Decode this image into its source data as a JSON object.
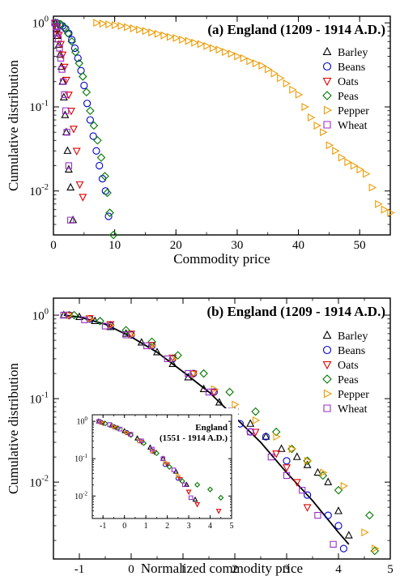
{
  "colors": {
    "Barley": "#000000",
    "Beans": "#0000cc",
    "Oats": "#dd0000",
    "Peas": "#007700",
    "Pepper": "#ee9a00",
    "Wheat": "#9a2ec8"
  },
  "markers": {
    "Barley": "triangle-up",
    "Beans": "circle",
    "Oats": "triangle-down",
    "Peas": "diamond",
    "Pepper": "triangle-right",
    "Wheat": "square"
  },
  "chart_data": [
    {
      "type": "scatter",
      "title": "(a) England (1209 - 1914 A.D.)",
      "xlabel": "Commodity price",
      "ylabel": "Cumulative distribution",
      "xlim": [
        0,
        55
      ],
      "ylim": [
        0.003,
        1.2
      ],
      "yscale": "log",
      "x_ticks": [
        0,
        10,
        20,
        30,
        40,
        50
      ],
      "y_ticks": [
        {
          "value": 1,
          "label": "10",
          "exp": "0"
        },
        {
          "value": 0.1,
          "label": "10",
          "exp": "-1"
        },
        {
          "value": 0.01,
          "label": "10",
          "exp": "-2"
        }
      ],
      "legend_position": "right",
      "series": [
        {
          "name": "Barley",
          "x": [
            0.3,
            0.5,
            0.7,
            0.9,
            1.1,
            1.3,
            1.5,
            1.7,
            1.9,
            2.1,
            2.3,
            2.5,
            2.8,
            3.2
          ],
          "y": [
            1.0,
            0.85,
            0.7,
            0.55,
            0.42,
            0.3,
            0.2,
            0.13,
            0.08,
            0.05,
            0.03,
            0.018,
            0.011,
            0.0045
          ]
        },
        {
          "name": "Beans",
          "x": [
            0.5,
            1.0,
            1.5,
            2.0,
            2.5,
            3.0,
            3.5,
            4.0,
            4.5,
            5.0,
            5.5,
            6.0,
            6.5,
            7.0,
            7.5,
            8.0,
            8.5,
            9.0
          ],
          "y": [
            1.0,
            0.97,
            0.92,
            0.85,
            0.75,
            0.63,
            0.5,
            0.38,
            0.27,
            0.18,
            0.11,
            0.07,
            0.045,
            0.03,
            0.02,
            0.014,
            0.01,
            0.005
          ]
        },
        {
          "name": "Oats",
          "x": [
            0.3,
            0.6,
            0.9,
            1.2,
            1.5,
            1.8,
            2.1,
            2.5,
            2.9,
            3.3,
            3.8,
            4.3,
            4.8
          ],
          "y": [
            1.0,
            0.88,
            0.72,
            0.56,
            0.42,
            0.3,
            0.21,
            0.14,
            0.09,
            0.055,
            0.03,
            0.012,
            0.0085
          ]
        },
        {
          "name": "Peas",
          "x": [
            0.6,
            1.2,
            1.8,
            2.4,
            3.0,
            3.6,
            4.2,
            4.8,
            5.4,
            6.0,
            6.6,
            7.2,
            7.8,
            8.4,
            8.8,
            9.2,
            9.8
          ],
          "y": [
            1.0,
            0.96,
            0.88,
            0.75,
            0.6,
            0.45,
            0.33,
            0.23,
            0.15,
            0.09,
            0.06,
            0.04,
            0.025,
            0.015,
            0.0095,
            0.0055,
            0.003
          ]
        },
        {
          "name": "Pepper",
          "x": [
            7,
            8,
            9,
            10,
            11,
            12,
            13,
            14,
            15,
            16,
            17,
            18,
            19,
            20,
            21,
            22,
            23,
            24,
            25,
            26,
            27,
            28,
            29,
            30,
            31,
            32,
            33,
            34,
            35,
            36,
            37,
            38,
            39,
            40,
            41,
            42,
            43,
            44,
            45,
            46,
            47,
            48,
            49,
            50,
            51,
            52,
            53,
            54,
            55
          ],
          "y": [
            1.0,
            0.98,
            0.96,
            0.94,
            0.92,
            0.89,
            0.86,
            0.83,
            0.8,
            0.77,
            0.74,
            0.71,
            0.68,
            0.66,
            0.63,
            0.61,
            0.58,
            0.56,
            0.53,
            0.5,
            0.48,
            0.45,
            0.43,
            0.4,
            0.38,
            0.35,
            0.33,
            0.31,
            0.28,
            0.25,
            0.22,
            0.19,
            0.16,
            0.14,
            0.1,
            0.075,
            0.06,
            0.05,
            0.035,
            0.03,
            0.025,
            0.022,
            0.02,
            0.018,
            0.016,
            0.011,
            0.007,
            0.006,
            0.0055
          ]
        },
        {
          "name": "Wheat",
          "x": [
            0.2,
            0.4,
            0.6,
            0.8,
            1.0,
            1.2,
            1.4,
            1.6,
            1.8,
            2.0,
            2.2,
            2.5,
            2.8
          ],
          "y": [
            1.0,
            0.9,
            0.78,
            0.64,
            0.5,
            0.38,
            0.28,
            0.2,
            0.14,
            0.09,
            0.05,
            0.02,
            0.0045
          ]
        }
      ]
    },
    {
      "type": "scatter",
      "title": "(b) England (1209 - 1914 A.D.)",
      "xlabel": "Normalized commodity price",
      "ylabel": "Cumulative distribution",
      "xlim": [
        -1.5,
        5
      ],
      "ylim": [
        0.0012,
        1.6
      ],
      "yscale": "log",
      "x_ticks": [
        -1,
        0,
        1,
        2,
        3,
        4,
        5
      ],
      "y_ticks": [
        {
          "value": 1,
          "label": "10",
          "exp": "0"
        },
        {
          "value": 0.1,
          "label": "10",
          "exp": "-1"
        },
        {
          "value": 0.01,
          "label": "10",
          "exp": "-2"
        }
      ],
      "legend_position": "right",
      "fit_curve": {
        "x": [
          -1.3,
          -1.0,
          -0.5,
          0.0,
          0.5,
          1.0,
          1.5,
          2.0,
          2.5,
          3.0,
          3.5,
          4.0,
          4.2
        ],
        "y": [
          1.0,
          0.95,
          0.78,
          0.55,
          0.36,
          0.21,
          0.12,
          0.06,
          0.03,
          0.013,
          0.006,
          0.0025,
          0.0018
        ]
      },
      "series": [
        {
          "name": "Barley",
          "x": [
            -1.3,
            -1.0,
            -0.7,
            -0.4,
            -0.1,
            0.2,
            0.5,
            0.8,
            1.1,
            1.4,
            1.7,
            2.0,
            2.3,
            2.6,
            2.9,
            3.2,
            3.4,
            3.6,
            3.8,
            4.0,
            4.2
          ],
          "y": [
            1.0,
            0.95,
            0.85,
            0.72,
            0.6,
            0.47,
            0.36,
            0.26,
            0.18,
            0.13,
            0.09,
            0.07,
            0.05,
            0.035,
            0.025,
            0.02,
            0.016,
            0.013,
            0.01,
            0.0045,
            0.0023
          ]
        },
        {
          "name": "Beans",
          "x": [
            -1.2,
            -0.8,
            -0.4,
            0.0,
            0.4,
            0.8,
            1.2,
            1.6,
            1.9,
            2.1,
            2.3,
            2.6,
            3.0,
            3.4,
            3.8,
            4.0,
            4.1
          ],
          "y": [
            1.0,
            0.9,
            0.75,
            0.58,
            0.43,
            0.3,
            0.2,
            0.12,
            0.07,
            0.05,
            0.04,
            0.035,
            0.018,
            0.007,
            0.004,
            0.003,
            0.0016
          ]
        },
        {
          "name": "Oats",
          "x": [
            -1.2,
            -0.8,
            -0.4,
            0.0,
            0.4,
            0.8,
            1.2,
            1.6,
            2.0,
            2.4,
            2.8,
            3.0,
            3.2,
            3.4
          ],
          "y": [
            1.0,
            0.92,
            0.78,
            0.6,
            0.44,
            0.31,
            0.2,
            0.12,
            0.07,
            0.04,
            0.022,
            0.015,
            0.01,
            0.005
          ]
        },
        {
          "name": "Peas",
          "x": [
            -1.1,
            -0.6,
            -0.1,
            0.4,
            0.9,
            1.4,
            1.9,
            2.4,
            2.8,
            3.1,
            3.4,
            3.7,
            4.0,
            4.6,
            4.7
          ],
          "y": [
            1.0,
            0.85,
            0.66,
            0.48,
            0.33,
            0.2,
            0.12,
            0.07,
            0.04,
            0.025,
            0.018,
            0.012,
            0.008,
            0.004,
            0.0015
          ]
        },
        {
          "name": "Pepper",
          "x": [
            -1.2,
            -0.8,
            -0.4,
            0.0,
            0.4,
            0.8,
            1.2,
            1.6,
            2.0,
            2.4,
            2.8,
            3.1,
            3.4,
            3.7,
            4.1,
            4.5,
            4.7
          ],
          "y": [
            1.0,
            0.9,
            0.75,
            0.58,
            0.43,
            0.3,
            0.2,
            0.13,
            0.085,
            0.055,
            0.035,
            0.025,
            0.018,
            0.013,
            0.009,
            0.0025,
            0.0016
          ]
        },
        {
          "name": "Wheat",
          "x": [
            -1.3,
            -0.9,
            -0.5,
            -0.1,
            0.3,
            0.7,
            1.1,
            1.5,
            1.9,
            2.3,
            2.7,
            3.0,
            3.3,
            3.6,
            3.9
          ],
          "y": [
            1.0,
            0.88,
            0.74,
            0.58,
            0.43,
            0.3,
            0.2,
            0.12,
            0.07,
            0.04,
            0.02,
            0.012,
            0.008,
            0.004,
            0.0018
          ]
        }
      ]
    },
    {
      "type": "scatter",
      "title": "England",
      "subtitle": "(1551 - 1914 A.D.)",
      "xlim": [
        -1.5,
        5
      ],
      "ylim": [
        0.0025,
        1.5
      ],
      "yscale": "log",
      "x_ticks": [
        -1,
        0,
        1,
        2,
        3,
        4,
        5
      ],
      "y_ticks": [
        {
          "value": 1,
          "label": "10",
          "exp": "0"
        },
        {
          "value": 0.1,
          "label": "10",
          "exp": "-1"
        },
        {
          "value": 0.01,
          "label": "10",
          "exp": "-2"
        }
      ],
      "series": [
        {
          "name": "Barley",
          "x": [
            -1.2,
            -0.6,
            0.0,
            0.6,
            1.2,
            1.8,
            2.4,
            2.9,
            3.3
          ],
          "y": [
            1.0,
            0.78,
            0.55,
            0.35,
            0.2,
            0.1,
            0.045,
            0.02,
            0.008
          ]
        },
        {
          "name": "Beans",
          "x": [
            -1.1,
            -0.5,
            0.1,
            0.7,
            1.3,
            1.9,
            2.5
          ],
          "y": [
            0.95,
            0.72,
            0.5,
            0.3,
            0.16,
            0.07,
            0.03
          ]
        },
        {
          "name": "Oats",
          "x": [
            -1.0,
            -0.4,
            0.2,
            0.8,
            1.4,
            2.0,
            2.6,
            3.0,
            3.4,
            4.4
          ],
          "y": [
            0.9,
            0.68,
            0.46,
            0.28,
            0.15,
            0.07,
            0.028,
            0.013,
            0.006,
            0.004
          ]
        },
        {
          "name": "Peas",
          "x": [
            -0.9,
            -0.3,
            0.3,
            0.9,
            1.5,
            2.1,
            2.7,
            3.4,
            4.0,
            4.5
          ],
          "y": [
            0.88,
            0.65,
            0.43,
            0.26,
            0.14,
            0.06,
            0.025,
            0.02,
            0.015,
            0.009
          ]
        },
        {
          "name": "Pepper",
          "x": [
            -1.1,
            -0.5,
            0.1,
            0.7,
            1.3,
            1.9,
            2.5
          ],
          "y": [
            0.95,
            0.72,
            0.5,
            0.3,
            0.16,
            0.08,
            0.035
          ]
        },
        {
          "name": "Wheat",
          "x": [
            -1.2,
            -0.7,
            -0.2,
            0.3,
            0.8,
            1.3,
            1.8,
            2.3,
            2.8,
            3.1
          ],
          "y": [
            1.0,
            0.82,
            0.62,
            0.45,
            0.3,
            0.18,
            0.1,
            0.05,
            0.02,
            0.009
          ]
        }
      ]
    }
  ]
}
